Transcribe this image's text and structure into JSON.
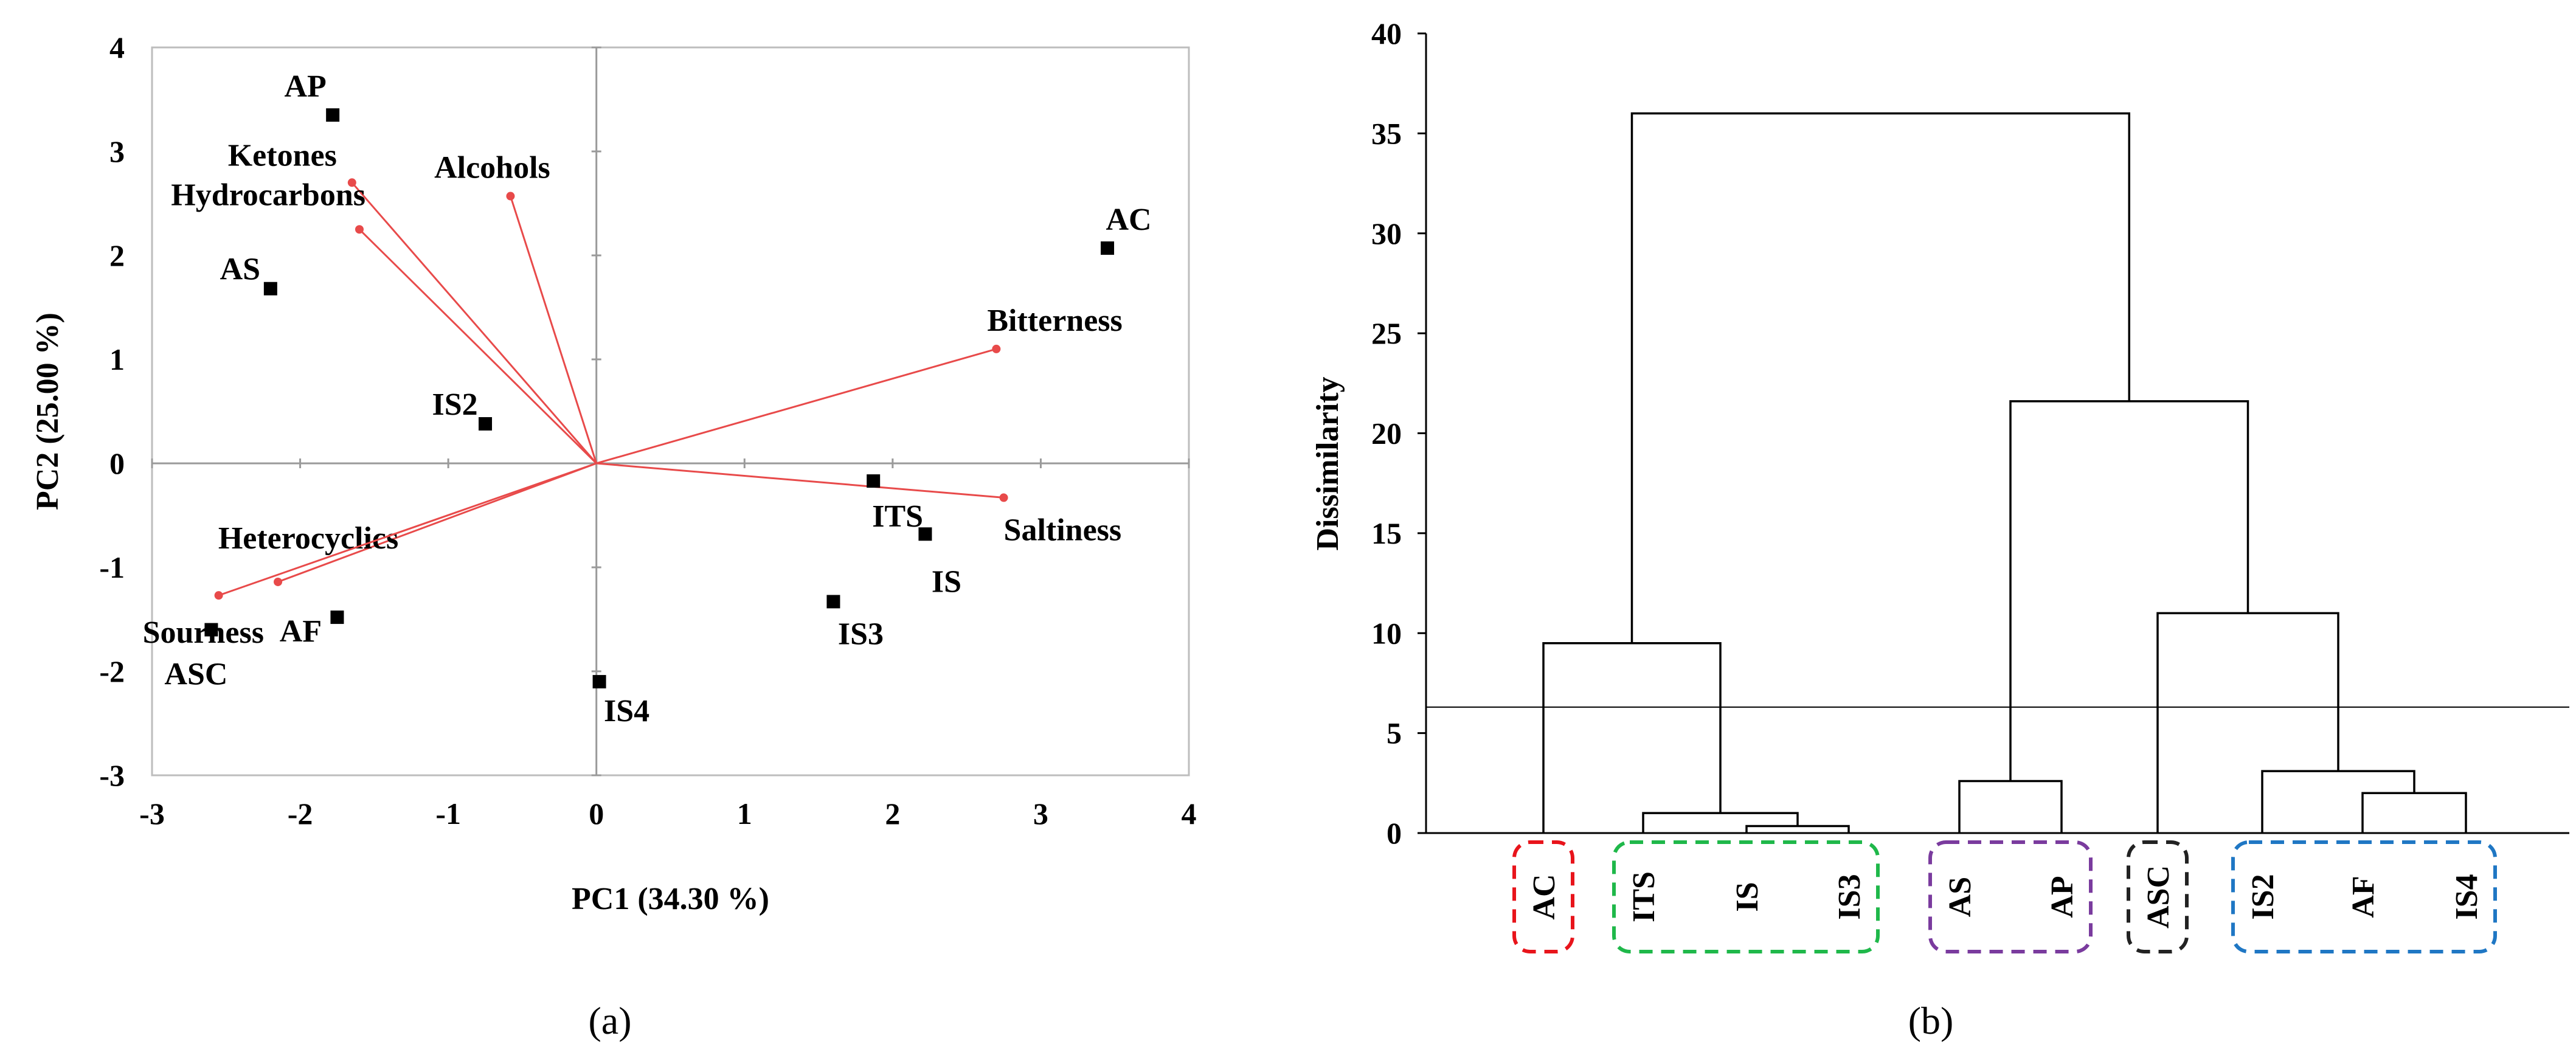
{
  "chart_data": [
    {
      "type": "scatter",
      "panel": "(a)",
      "xlabel": "PC1 (34.30 %)",
      "ylabel": "PC2 (25.00 %)",
      "xlim": [
        -3,
        4
      ],
      "ylim": [
        -3,
        4
      ],
      "xticks": [
        "-3",
        "-2",
        "-1",
        "0",
        "1",
        "2",
        "3",
        "4"
      ],
      "yticks": [
        "-3",
        "-2",
        "-1",
        "0",
        "1",
        "2",
        "3",
        "4"
      ],
      "series": [
        {
          "name": "samples",
          "marker": "square",
          "points": [
            {
              "label": "AP",
              "x": -1.78,
              "y": 3.35
            },
            {
              "label": "AS",
              "x": -2.2,
              "y": 1.68
            },
            {
              "label": "IS2",
              "x": -0.75,
              "y": 0.38
            },
            {
              "label": "ITS",
              "x": 1.87,
              "y": -0.17
            },
            {
              "label": "IS",
              "x": 2.22,
              "y": -0.68
            },
            {
              "label": "IS3",
              "x": 1.6,
              "y": -1.33
            },
            {
              "label": "IS4",
              "x": 0.02,
              "y": -2.1
            },
            {
              "label": "AF",
              "x": -1.75,
              "y": -1.48
            },
            {
              "label": "ASC",
              "x": -2.6,
              "y": -1.6
            },
            {
              "label": "AC",
              "x": 3.45,
              "y": 2.07
            }
          ]
        },
        {
          "name": "variables",
          "color": "#e84a4a",
          "vectors": [
            {
              "label": "Ketones",
              "x": -1.65,
              "y": 2.7
            },
            {
              "label": "Hydrocarbons",
              "x": -1.6,
              "y": 2.25
            },
            {
              "label": "Alcohols",
              "x": -0.58,
              "y": 2.57
            },
            {
              "label": "Bitterness",
              "x": 2.7,
              "y": 1.1
            },
            {
              "label": "Saltiness",
              "x": 2.75,
              "y": -0.33
            },
            {
              "label": "Heterocyclics",
              "x": -2.15,
              "y": -1.14
            },
            {
              "label": "Sourness",
              "x": -2.55,
              "y": -1.27
            }
          ]
        }
      ]
    },
    {
      "type": "dendrogram",
      "panel": "(b)",
      "ylabel": "Dissimilarity",
      "ylim": [
        0,
        40
      ],
      "yticks": [
        "0",
        "5",
        "10",
        "15",
        "20",
        "25",
        "30",
        "35",
        "40"
      ],
      "cut_line": 6.3,
      "leaves": [
        "AC",
        "ITS",
        "IS",
        "IS3",
        "AS",
        "AP",
        "ASC",
        "IS2",
        "AF",
        "IS4"
      ],
      "merges": [
        {
          "a": "IS",
          "b": "IS3",
          "height": 0.35
        },
        {
          "a": "ITS",
          "b": "(IS,IS3)",
          "height": 1.0
        },
        {
          "a": "AF",
          "b": "IS4",
          "height": 2.0
        },
        {
          "a": "AS",
          "b": "AP",
          "height": 2.6
        },
        {
          "a": "IS2",
          "b": "(AF,IS4)",
          "height": 3.1
        },
        {
          "a": "AC",
          "b": "(ITS,IS,IS3)",
          "height": 9.5
        },
        {
          "a": "ASC",
          "b": "(IS2,AF,IS4)",
          "height": 11.0
        },
        {
          "a": "(AS,AP)",
          "b": "(ASC,IS2,AF,IS4)",
          "height": 21.6
        },
        {
          "a": "(AC,ITS,IS,IS3)",
          "b": "(AS,AP,ASC,IS2,AF,IS4)",
          "height": 36.0
        }
      ],
      "clusters": [
        {
          "members": [
            "AC"
          ],
          "color": "#e8141b"
        },
        {
          "members": [
            "ITS",
            "IS",
            "IS3"
          ],
          "color": "#1fb84a"
        },
        {
          "members": [
            "AS",
            "AP"
          ],
          "color": "#7a3b9e"
        },
        {
          "members": [
            "ASC"
          ],
          "color": "#222222"
        },
        {
          "members": [
            "IS2",
            "AF",
            "IS4"
          ],
          "color": "#1f77c4"
        }
      ]
    }
  ]
}
